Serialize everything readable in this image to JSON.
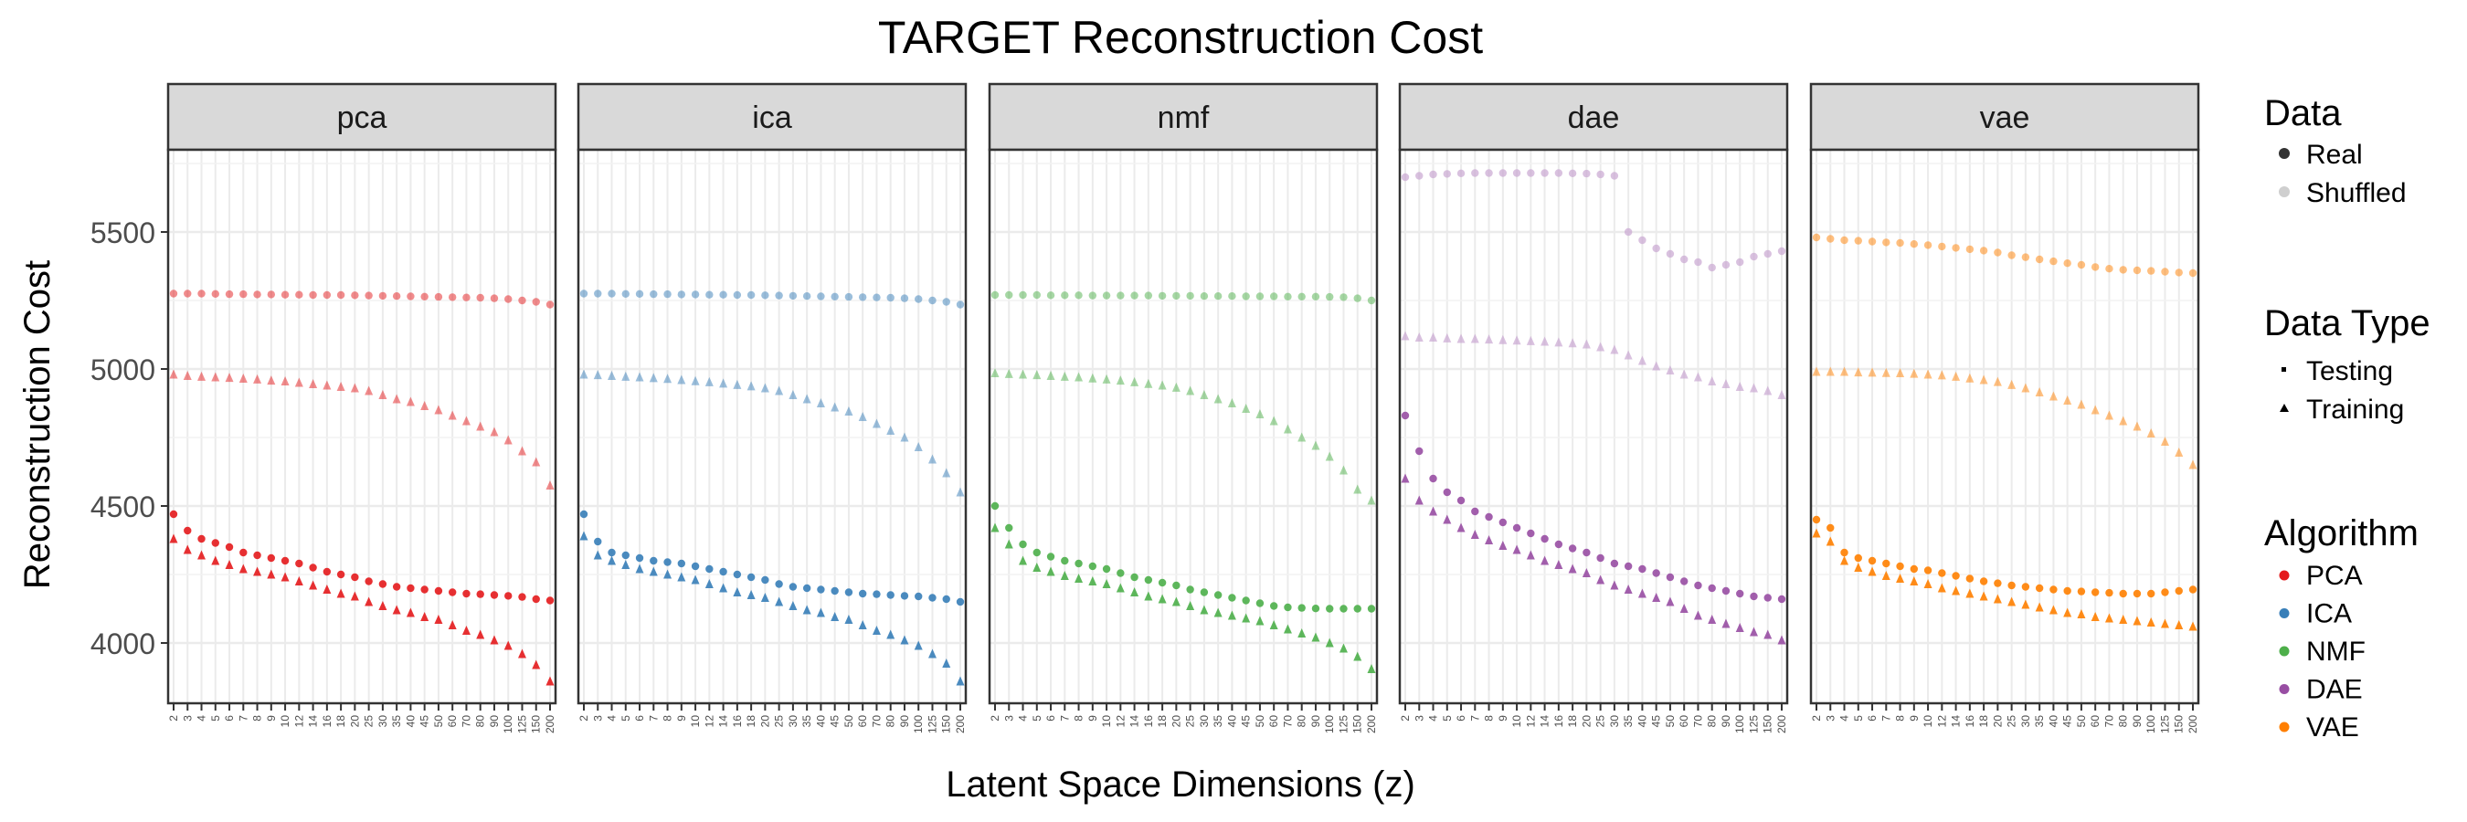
{
  "chart_data": {
    "type": "scatter",
    "title": "TARGET Reconstruction Cost",
    "xlabel": "Latent Space Dimensions (z)",
    "ylabel": "Reconstruction Cost",
    "x_categories": [
      "2",
      "3",
      "4",
      "5",
      "6",
      "7",
      "8",
      "9",
      "10",
      "12",
      "14",
      "16",
      "18",
      "20",
      "25",
      "30",
      "35",
      "40",
      "45",
      "50",
      "60",
      "70",
      "80",
      "90",
      "100",
      "125",
      "150",
      "200"
    ],
    "ylim": [
      3780,
      5800
    ],
    "yticks": [
      4000,
      4500,
      5000,
      5500
    ],
    "grid": true,
    "legend_placement": "right",
    "legend": {
      "data": {
        "title": "Data",
        "items": [
          "Real",
          "Shuffled"
        ]
      },
      "data_type": {
        "title": "Data Type",
        "items": [
          "Testing",
          "Training"
        ]
      },
      "algorithm": {
        "title": "Algorithm",
        "items": [
          "PCA",
          "ICA",
          "NMF",
          "DAE",
          "VAE"
        ]
      }
    },
    "colors": {
      "PCA": "#e41a1c",
      "ICA": "#377eb8",
      "NMF": "#4daf4a",
      "DAE": "#984ea3",
      "VAE": "#ff7f00"
    },
    "panels": [
      {
        "label": "pca",
        "algorithm": "PCA",
        "series": [
          {
            "data": "Real",
            "data_type": "Testing",
            "values": [
              4470,
              4410,
              4380,
              4365,
              4350,
              4330,
              4320,
              4310,
              4300,
              4290,
              4275,
              4260,
              4250,
              4240,
              4225,
              4215,
              4205,
              4200,
              4195,
              4190,
              4185,
              4180,
              4178,
              4175,
              4172,
              4168,
              4160,
              4155
            ]
          },
          {
            "data": "Real",
            "data_type": "Training",
            "values": [
              4380,
              4340,
              4320,
              4300,
              4285,
              4270,
              4260,
              4250,
              4240,
              4225,
              4210,
              4195,
              4180,
              4170,
              4150,
              4135,
              4120,
              4110,
              4095,
              4085,
              4065,
              4045,
              4030,
              4010,
              3990,
              3960,
              3920,
              3860
            ]
          },
          {
            "data": "Shuffled",
            "data_type": "Testing",
            "values": [
              5275,
              5275,
              5275,
              5274,
              5273,
              5273,
              5272,
              5272,
              5271,
              5271,
              5270,
              5270,
              5270,
              5269,
              5268,
              5267,
              5266,
              5265,
              5264,
              5263,
              5262,
              5261,
              5260,
              5258,
              5255,
              5250,
              5245,
              5235
            ]
          },
          {
            "data": "Shuffled",
            "data_type": "Training",
            "values": [
              4980,
              4975,
              4972,
              4970,
              4968,
              4965,
              4962,
              4958,
              4955,
              4950,
              4945,
              4940,
              4935,
              4930,
              4920,
              4905,
              4890,
              4880,
              4865,
              4850,
              4830,
              4810,
              4790,
              4770,
              4740,
              4700,
              4660,
              4575
            ]
          }
        ]
      },
      {
        "label": "ica",
        "algorithm": "ICA",
        "series": [
          {
            "data": "Real",
            "data_type": "Testing",
            "values": [
              4470,
              4370,
              4330,
              4320,
              4310,
              4300,
              4295,
              4290,
              4280,
              4270,
              4260,
              4250,
              4240,
              4230,
              4215,
              4205,
              4200,
              4195,
              4190,
              4185,
              4180,
              4178,
              4175,
              4172,
              4170,
              4165,
              4160,
              4150
            ]
          },
          {
            "data": "Real",
            "data_type": "Training",
            "values": [
              4390,
              4320,
              4300,
              4285,
              4270,
              4260,
              4250,
              4240,
              4230,
              4215,
              4200,
              4185,
              4175,
              4165,
              4150,
              4135,
              4120,
              4110,
              4095,
              4085,
              4065,
              4045,
              4030,
              4010,
              3990,
              3960,
              3925,
              3860
            ]
          },
          {
            "data": "Shuffled",
            "data_type": "Testing",
            "values": [
              5275,
              5275,
              5275,
              5274,
              5274,
              5273,
              5273,
              5272,
              5272,
              5271,
              5271,
              5270,
              5270,
              5269,
              5268,
              5267,
              5266,
              5265,
              5264,
              5263,
              5262,
              5261,
              5260,
              5258,
              5255,
              5250,
              5245,
              5235
            ]
          },
          {
            "data": "Shuffled",
            "data_type": "Training",
            "values": [
              4980,
              4978,
              4975,
              4972,
              4970,
              4967,
              4964,
              4960,
              4956,
              4952,
              4947,
              4942,
              4937,
              4930,
              4920,
              4905,
              4890,
              4875,
              4860,
              4845,
              4825,
              4800,
              4775,
              4750,
              4715,
              4670,
              4620,
              4550
            ]
          }
        ]
      },
      {
        "label": "nmf",
        "algorithm": "NMF",
        "series": [
          {
            "data": "Real",
            "data_type": "Testing",
            "values": [
              4500,
              4420,
              4360,
              4330,
              4315,
              4300,
              4290,
              4280,
              4270,
              4255,
              4240,
              4230,
              4220,
              4210,
              4195,
              4185,
              4175,
              4165,
              4155,
              4145,
              4135,
              4130,
              4128,
              4126,
              4125,
              4125,
              4125,
              4125
            ]
          },
          {
            "data": "Real",
            "data_type": "Training",
            "values": [
              4420,
              4360,
              4300,
              4275,
              4260,
              4245,
              4235,
              4225,
              4215,
              4200,
              4185,
              4170,
              4160,
              4150,
              4135,
              4120,
              4110,
              4100,
              4090,
              4080,
              4065,
              4050,
              4035,
              4020,
              4000,
              3980,
              3950,
              3905
            ]
          },
          {
            "data": "Shuffled",
            "data_type": "Testing",
            "values": [
              5270,
              5270,
              5270,
              5270,
              5269,
              5269,
              5269,
              5268,
              5268,
              5268,
              5268,
              5268,
              5267,
              5267,
              5267,
              5266,
              5266,
              5266,
              5265,
              5265,
              5265,
              5264,
              5264,
              5264,
              5263,
              5262,
              5258,
              5250
            ]
          },
          {
            "data": "Shuffled",
            "data_type": "Training",
            "values": [
              4985,
              4982,
              4980,
              4978,
              4975,
              4972,
              4970,
              4966,
              4962,
              4958,
              4952,
              4946,
              4940,
              4932,
              4920,
              4905,
              4890,
              4875,
              4855,
              4835,
              4810,
              4780,
              4750,
              4720,
              4680,
              4630,
              4560,
              4520
            ]
          }
        ]
      },
      {
        "label": "dae",
        "algorithm": "DAE",
        "series": [
          {
            "data": "Real",
            "data_type": "Testing",
            "values": [
              4830,
              4700,
              4600,
              4550,
              4520,
              4480,
              4460,
              4440,
              4420,
              4400,
              4380,
              4360,
              4345,
              4330,
              4310,
              4290,
              4280,
              4270,
              4255,
              4240,
              4225,
              4210,
              4200,
              4190,
              4180,
              4170,
              4165,
              4160
            ]
          },
          {
            "data": "Real",
            "data_type": "Training",
            "values": [
              4600,
              4520,
              4480,
              4450,
              4420,
              4395,
              4375,
              4355,
              4340,
              4320,
              4300,
              4285,
              4270,
              4255,
              4230,
              4210,
              4195,
              4180,
              4165,
              4150,
              4125,
              4100,
              4085,
              4070,
              4055,
              4040,
              4030,
              4010
            ]
          },
          {
            "data": "Shuffled",
            "data_type": "Testing",
            "values": [
              5700,
              5705,
              5710,
              5712,
              5714,
              5715,
              5715,
              5715,
              5715,
              5715,
              5715,
              5715,
              5714,
              5713,
              5710,
              5705,
              5500,
              5470,
              5440,
              5420,
              5400,
              5390,
              5370,
              5380,
              5390,
              5410,
              5420,
              5430
            ]
          },
          {
            "data": "Shuffled",
            "data_type": "Training",
            "values": [
              5120,
              5115,
              5115,
              5112,
              5110,
              5110,
              5108,
              5106,
              5104,
              5102,
              5100,
              5097,
              5094,
              5090,
              5080,
              5070,
              5050,
              5030,
              5010,
              4995,
              4980,
              4970,
              4955,
              4945,
              4935,
              4930,
              4920,
              4905
            ]
          }
        ]
      },
      {
        "label": "vae",
        "algorithm": "VAE",
        "series": [
          {
            "data": "Real",
            "data_type": "Testing",
            "values": [
              4450,
              4420,
              4330,
              4310,
              4300,
              4290,
              4280,
              4270,
              4265,
              4255,
              4245,
              4235,
              4225,
              4218,
              4210,
              4205,
              4200,
              4195,
              4190,
              4188,
              4185,
              4183,
              4180,
              4180,
              4180,
              4185,
              4190,
              4195
            ]
          },
          {
            "data": "Real",
            "data_type": "Training",
            "values": [
              4400,
              4370,
              4300,
              4275,
              4260,
              4245,
              4235,
              4225,
              4215,
              4200,
              4190,
              4180,
              4170,
              4160,
              4150,
              4140,
              4130,
              4120,
              4110,
              4105,
              4095,
              4090,
              4085,
              4080,
              4075,
              4070,
              4065,
              4060
            ]
          },
          {
            "data": "Shuffled",
            "data_type": "Testing",
            "values": [
              5480,
              5475,
              5470,
              5468,
              5465,
              5462,
              5460,
              5456,
              5452,
              5447,
              5442,
              5437,
              5432,
              5425,
              5415,
              5408,
              5400,
              5393,
              5386,
              5380,
              5372,
              5366,
              5362,
              5360,
              5358,
              5355,
              5352,
              5350
            ]
          },
          {
            "data": "Shuffled",
            "data_type": "Training",
            "values": [
              4990,
              4990,
              4990,
              4988,
              4987,
              4986,
              4985,
              4983,
              4980,
              4977,
              4972,
              4966,
              4960,
              4953,
              4942,
              4930,
              4915,
              4900,
              4885,
              4870,
              4850,
              4830,
              4810,
              4790,
              4765,
              4735,
              4695,
              4650
            ]
          }
        ]
      }
    ]
  }
}
